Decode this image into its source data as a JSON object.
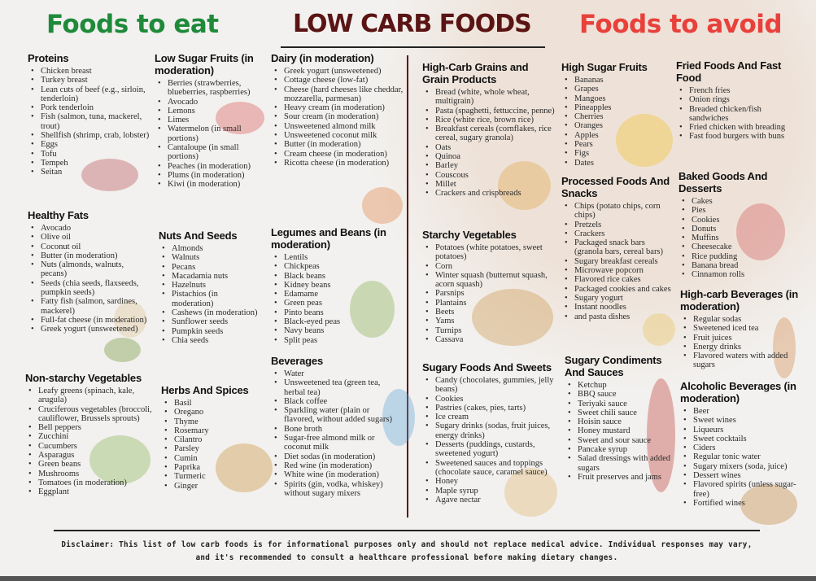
{
  "header": {
    "left_title": "Foods to eat",
    "center_title": "LOW CARB FOODS",
    "right_title": "Foods to avoid"
  },
  "colors": {
    "eat": "#1f8a3a",
    "main": "#5a1414",
    "avoid": "#e8413b"
  },
  "sections": [
    {
      "title": "Proteins",
      "items": [
        "Chicken breast",
        "Turkey breast",
        "Lean cuts of beef (e.g., sirloin, tenderloin)",
        "Pork tenderloin",
        "Fish (salmon, tuna, mackerel, trout)",
        "Shellfish (shrimp, crab, lobster)",
        "Eggs",
        "Tofu",
        "Tempeh",
        "Seitan"
      ]
    },
    {
      "title": "Low Sugar Fruits (in moderation)",
      "items": [
        "Berries (strawberries, blueberries, raspberries)",
        "Avocado",
        "Lemons",
        "Limes",
        "Watermelon (in small portions)",
        "Cantaloupe (in small portions)",
        "Peaches (in moderation)",
        "Plums (in moderation)",
        "Kiwi (in moderation)"
      ]
    },
    {
      "title": "Healthy Fats",
      "items": [
        "Avocado",
        "Olive oil",
        "Coconut oil",
        "Butter (in moderation)",
        "Nuts (almonds, walnuts, pecans)",
        "Seeds (chia seeds, flaxseeds, pumpkin seeds)",
        "Fatty fish (salmon, sardines, mackerel)",
        "Full-fat cheese (in moderation)",
        "Greek yogurt (unsweetened)"
      ]
    },
    {
      "title": "Nuts And Seeds",
      "items": [
        "Almonds",
        "Walnuts",
        "Pecans",
        "Macadamia nuts",
        "Hazelnuts",
        "Pistachios (in moderation)",
        "Cashews (in moderation)",
        "Sunflower seeds",
        "Pumpkin seeds",
        "Chia seeds"
      ]
    },
    {
      "title": "Non-starchy Vegetables",
      "items": [
        "Leafy greens (spinach, kale, arugula)",
        "Cruciferous vegetables (broccoli, cauliflower, Brussels sprouts)",
        "Bell peppers",
        "Zucchini",
        "Cucumbers",
        "Asparagus",
        "Green beans",
        "Mushrooms",
        "Tomatoes (in moderation)",
        "Eggplant"
      ]
    },
    {
      "title": "Herbs And Spices",
      "items": [
        "Basil",
        "Oregano",
        "Thyme",
        "Rosemary",
        "Cilantro",
        "Parsley",
        "Cumin",
        "Paprika",
        "Turmeric",
        "Ginger"
      ]
    },
    {
      "title": "Dairy (in moderation)",
      "items": [
        "Greek yogurt (unsweetened)",
        "Cottage cheese (low-fat)",
        "Cheese (hard cheeses like cheddar, mozzarella, parmesan)",
        "Heavy cream (in moderation)",
        "Sour cream (in moderation)",
        "Unsweetened almond milk",
        "Unsweetened coconut milk",
        "Butter (in moderation)",
        "Cream cheese (in moderation)",
        "Ricotta cheese (in moderation)"
      ]
    },
    {
      "title": "Legumes and Beans (in moderation)",
      "items": [
        "Lentils",
        "Chickpeas",
        "Black beans",
        "Kidney beans",
        "Edamame",
        "Green peas",
        "Pinto beans",
        "Black-eyed peas",
        "Navy beans",
        "Split peas"
      ]
    },
    {
      "title": "Beverages",
      "items": [
        "Water",
        "Unsweetened tea (green tea, herbal tea)",
        "Black coffee",
        "Sparkling water (plain or flavored, without added sugars)",
        "Bone broth",
        "Sugar-free almond milk or coconut milk",
        "Diet sodas (in moderation)",
        "Red wine (in moderation)",
        "White wine (in moderation)",
        "Spirits (gin, vodka, whiskey) without sugary mixers"
      ]
    },
    {
      "title": "High-Carb Grains and Grain Products",
      "items": [
        "Bread (white, whole wheat, multigrain)",
        "Pasta (spaghetti, fettuccine, penne)",
        "Rice (white rice, brown rice)",
        "Breakfast cereals (cornflakes, rice cereal, sugary granola)",
        "Oats",
        "Quinoa",
        "Barley",
        "Couscous",
        "Millet",
        "Crackers and crispbreads"
      ]
    },
    {
      "title": "Starchy Vegetables",
      "items": [
        "Potatoes (white potatoes, sweet potatoes)",
        "Corn",
        "Winter squash (butternut squash, acorn squash)",
        "Parsnips",
        "Plantains",
        "Beets",
        "Yams",
        "Turnips",
        "Cassava"
      ]
    },
    {
      "title": "Sugary Foods And Sweets",
      "items": [
        "Candy (chocolates, gummies, jelly beans)",
        "Cookies",
        "Pastries (cakes, pies, tarts)",
        "Ice cream",
        "Sugary drinks (sodas, fruit juices, energy drinks)",
        "Desserts (puddings, custards, sweetened yogurt)",
        "Sweetened sauces and toppings (chocolate sauce, caramel sauce)",
        "Honey",
        "Maple syrup",
        "Agave nectar"
      ]
    },
    {
      "title": "High Sugar Fruits",
      "items": [
        "Bananas",
        "Grapes",
        "Mangoes",
        "Pineapples",
        "Cherries",
        "Oranges",
        "Apples",
        "Pears",
        "Figs",
        "Dates"
      ]
    },
    {
      "title": "Processed Foods And Snacks",
      "items": [
        "Chips (potato chips, corn chips)",
        "Pretzels",
        "Crackers",
        "Packaged snack bars (granola bars, cereal bars)",
        "Sugary breakfast cereals",
        "Microwave popcorn",
        "Flavored rice cakes",
        "Packaged cookies and cakes",
        "Sugary yogurt",
        "Instant noodles",
        "and pasta dishes"
      ]
    },
    {
      "title": "Sugary Condiments And Sauces",
      "items": [
        "Ketchup",
        "BBQ sauce",
        "Teriyaki sauce",
        "Sweet chili sauce",
        "Hoisin sauce",
        "Honey mustard",
        "Sweet and sour sauce",
        "Pancake syrup",
        "Salad dressings with added sugars",
        "Fruit preserves and jams"
      ]
    },
    {
      "title": "Fried Foods And Fast Food",
      "items": [
        "French fries",
        "Onion rings",
        "Breaded chicken/fish sandwiches",
        "Fried chicken with breading",
        "Fast food burgers with buns"
      ]
    },
    {
      "title": "Baked Goods And Desserts",
      "items": [
        "Cakes",
        "Pies",
        "Cookies",
        "Donuts",
        "Muffins",
        "Cheesecake",
        "Rice pudding",
        "Banana bread",
        "Cinnamon rolls"
      ]
    },
    {
      "title": "High-carb Beverages (in moderation)",
      "items": [
        "Regular sodas",
        "Sweetened iced tea",
        "Fruit juices",
        "Energy drinks",
        "Flavored waters with added sugars"
      ]
    },
    {
      "title": "Alcoholic Beverages (in moderation)",
      "items": [
        "Beer",
        "Sweet wines",
        "Liqueurs",
        "Sweet cocktails",
        "Ciders",
        "Regular tonic water",
        "Sugary mixers (soda, juice)",
        "Dessert wines",
        "Flavored spirits (unless sugar-free)",
        "Fortified wines"
      ]
    }
  ],
  "illustrations": [
    "meat-eggs-icon",
    "berries-icon",
    "nuts-icon",
    "avocado-icon",
    "vegetables-icon",
    "ginger-parsley-icon",
    "cottage-cheese-bowl-icon",
    "peas-bowl-icon",
    "water-bottle-icon",
    "bread-waffle-icon",
    "root-vegetables-icon",
    "cookies-honey-icon",
    "banana-mango-icon",
    "popcorn-bowl-icon",
    "sauce-bottles-icon",
    "cake-icon",
    "iced-tea-icon",
    "jigger-icon"
  ],
  "disclaimer": "Disclaimer: This list of low carb foods is for informational purposes only and should not replace medical advice. Individual responses may vary, and it's recommended to consult a healthcare professional before making dietary changes."
}
